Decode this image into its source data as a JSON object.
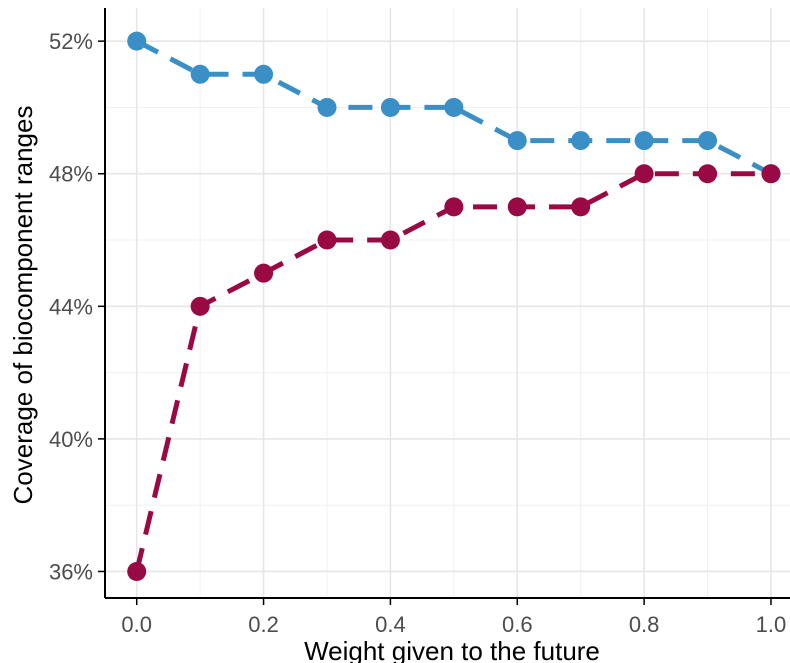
{
  "chart_data": {
    "type": "line",
    "title": "",
    "xlabel": "Weight given to the future",
    "ylabel": "Coverage of biocomponent ranges",
    "xlim": [
      -0.05,
      1.03
    ],
    "ylim": [
      35.2,
      53
    ],
    "x_ticks": [
      0.0,
      0.2,
      0.4,
      0.6,
      0.8,
      1.0
    ],
    "x_tick_labels": [
      "0.0",
      "0.2",
      "0.4",
      "0.6",
      "0.8",
      "1.0"
    ],
    "y_ticks": [
      36,
      40,
      44,
      48,
      52
    ],
    "y_tick_labels": [
      "36%",
      "40%",
      "44%",
      "48%",
      "52%"
    ],
    "grid": true,
    "line_style": "dashed",
    "x": [
      0.0,
      0.1,
      0.2,
      0.3,
      0.4,
      0.5,
      0.6,
      0.7,
      0.8,
      0.9,
      1.0
    ],
    "series": [
      {
        "color": "#3a8fc7",
        "values": [
          52,
          51,
          51,
          50,
          50,
          50,
          49,
          49,
          49,
          49,
          48
        ]
      },
      {
        "color": "#990a45",
        "values": [
          36,
          44,
          45,
          46,
          46,
          47,
          47,
          47,
          48,
          48,
          48
        ]
      }
    ]
  }
}
